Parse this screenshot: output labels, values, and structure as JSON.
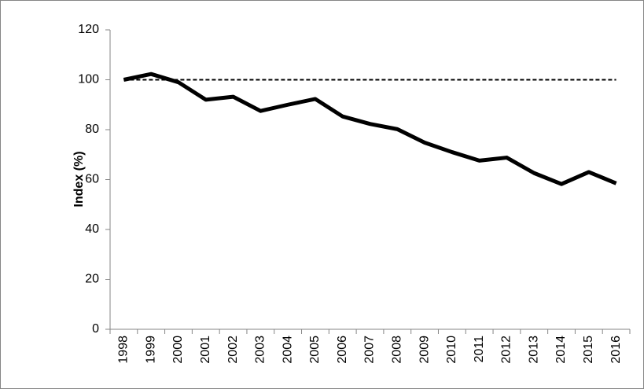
{
  "chart_data": {
    "type": "line",
    "y_label": "Index (%)",
    "categories": [
      "1998",
      "1999",
      "2000",
      "2001",
      "2002",
      "2003",
      "2004",
      "2005",
      "2006",
      "2007",
      "2008",
      "2009",
      "2010",
      "2011",
      "2012",
      "2013",
      "2014",
      "2015",
      "2016"
    ],
    "series": [
      {
        "color": "#000000",
        "dash": false,
        "values": [
          100,
          102.3,
          99,
          92,
          93.2,
          87.5,
          90,
          92.3,
          85.3,
          82.3,
          80.2,
          74.8,
          71,
          67.6,
          68.8,
          62.6,
          58.2,
          63,
          58.5
        ]
      },
      {
        "color": "#000000",
        "dash": true,
        "values": [
          100,
          100,
          100,
          100,
          100,
          100,
          100,
          100,
          100,
          100,
          100,
          100,
          100,
          100,
          100,
          100,
          100,
          100,
          100
        ]
      }
    ],
    "ylim": [
      0,
      120
    ],
    "yticks": [
      0,
      20,
      40,
      60,
      80,
      100,
      120
    ],
    "grid": false
  }
}
